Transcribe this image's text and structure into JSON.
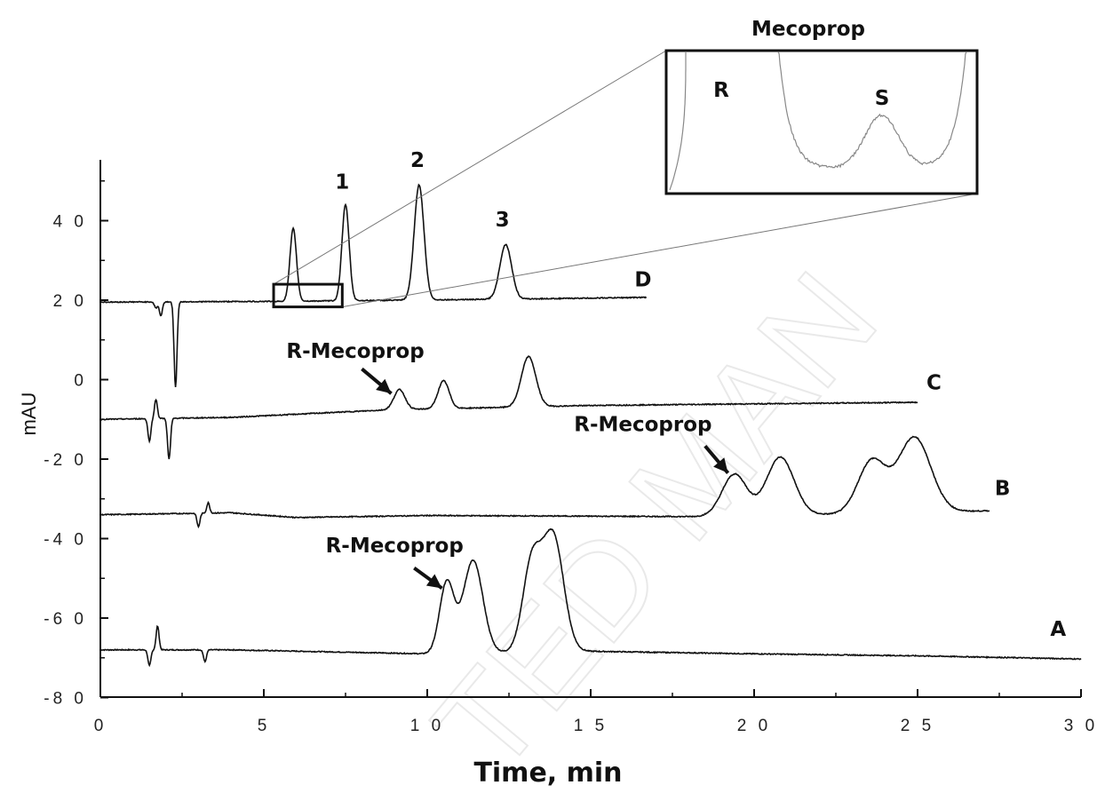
{
  "chart_data": {
    "type": "line",
    "title": "",
    "xlabel": "Time, min",
    "ylabel": "mAU",
    "xlim": [
      0,
      30
    ],
    "ylim": [
      -80,
      53
    ],
    "x_ticks": [
      "0",
      "5",
      "1 0",
      "1 5",
      "2 0",
      "2 5",
      "3 0"
    ],
    "y_ticks": [
      "4 0",
      "2 0",
      "0",
      "-2 0",
      "-4 0",
      "-6 0",
      "-8 0"
    ],
    "grid": false,
    "legend": "none",
    "series": [
      {
        "name": "A",
        "baseline": [
          [
            0,
            -68
          ],
          [
            1.5,
            -68
          ],
          [
            4,
            -68
          ],
          [
            7,
            -68.5
          ],
          [
            10,
            -69
          ],
          [
            14.5,
            -68.3
          ],
          [
            20,
            -69
          ],
          [
            25,
            -69.5
          ],
          [
            30,
            -70.3
          ]
        ],
        "artifacts": [
          [
            1.5,
            -72
          ],
          [
            1.75,
            -62
          ],
          [
            3.2,
            -71
          ]
        ],
        "peaks": [
          [
            10.6,
            -51,
            0.22
          ],
          [
            11.4,
            -45.5,
            0.3
          ],
          [
            13.2,
            -46.5,
            0.28
          ],
          [
            13.85,
            -39.5,
            0.32
          ]
        ]
      },
      {
        "name": "B",
        "baseline": [
          [
            0,
            -34
          ],
          [
            4,
            -33.5
          ],
          [
            6,
            -34.7
          ],
          [
            10,
            -34.2
          ],
          [
            19,
            -34.5
          ],
          [
            27.2,
            -33
          ]
        ],
        "artifacts": [
          [
            3,
            -37
          ],
          [
            3.3,
            -31
          ]
        ],
        "peaks": [
          [
            19.4,
            -23.8,
            0.38
          ],
          [
            20.8,
            -19.5,
            0.42
          ],
          [
            23.6,
            -20.5,
            0.42
          ],
          [
            24.9,
            -14.5,
            0.5
          ]
        ]
      },
      {
        "name": "C",
        "baseline": [
          [
            0,
            -10
          ],
          [
            4,
            -9.5
          ],
          [
            8.8,
            -7.6
          ],
          [
            15,
            -6.5
          ],
          [
            25,
            -5.7
          ]
        ],
        "artifacts": [
          [
            1.5,
            -15.5
          ],
          [
            1.7,
            -5
          ],
          [
            2.1,
            -20
          ]
        ],
        "peaks": [
          [
            9.15,
            -2.5,
            0.17
          ],
          [
            10.5,
            -0.3,
            0.17
          ],
          [
            13.1,
            5.8,
            0.22
          ]
        ]
      },
      {
        "name": "D",
        "baseline": [
          [
            0,
            19.5
          ],
          [
            5.5,
            19.7
          ],
          [
            13,
            20.3
          ],
          [
            16.7,
            20.7
          ]
        ],
        "artifacts": [
          [
            1.7,
            18
          ],
          [
            1.85,
            16
          ],
          [
            2.3,
            -2
          ]
        ],
        "peaks": [
          [
            5.9,
            38,
            0.1
          ],
          [
            7.5,
            44,
            0.11
          ],
          [
            9.75,
            49,
            0.15
          ],
          [
            12.4,
            34,
            0.18
          ]
        ]
      }
    ],
    "annotations": {
      "peak_numbers": [
        {
          "text": "1",
          "x": 7.4,
          "y": 48
        },
        {
          "text": "2",
          "x": 9.7,
          "y": 53.5
        },
        {
          "text": "3",
          "x": 12.3,
          "y": 38.5
        }
      ],
      "series_labels": [
        {
          "text": "D",
          "x": 16.6,
          "y": 23.5
        },
        {
          "text": "C",
          "x": 25.5,
          "y": -2.5
        },
        {
          "text": "B",
          "x": 27.6,
          "y": -29
        },
        {
          "text": "A",
          "x": 29.3,
          "y": -64.5
        }
      ],
      "arrows": [
        {
          "text": "R-Mecoprop",
          "text_x": 7.8,
          "text_y": 5.5,
          "from": [
            8.0,
            2.7
          ],
          "to": [
            8.9,
            -3.5
          ]
        },
        {
          "text": "R-Mecoprop",
          "text_x": 16.6,
          "text_y": -13,
          "from": [
            18.5,
            -16.7
          ],
          "to": [
            19.2,
            -23.5
          ]
        },
        {
          "text": "R-Mecoprop",
          "text_x": 9,
          "text_y": -43.5,
          "from": [
            9.6,
            -47.4
          ],
          "to": [
            10.45,
            -52.5
          ]
        }
      ]
    },
    "inset": {
      "title": "Mecoprop",
      "labels": [
        "R",
        "S"
      ],
      "source_range": {
        "x": [
          5.3,
          7.4
        ],
        "y": [
          18.3,
          24
        ]
      }
    }
  },
  "watermark": "TED MAN"
}
